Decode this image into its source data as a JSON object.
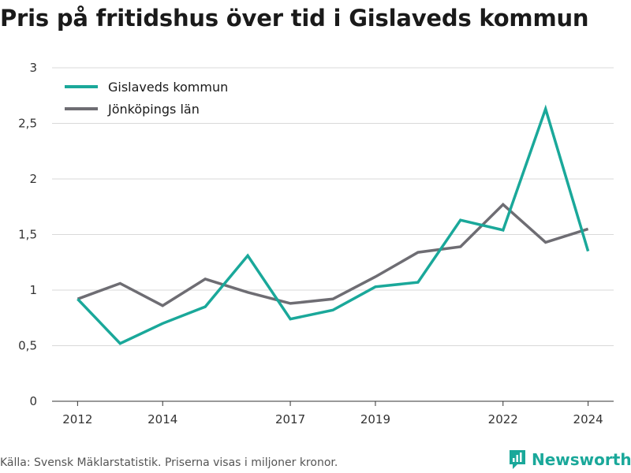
{
  "title": "Pris på fritidshus över tid i Gislaveds kommun",
  "source": "Källa: Svensk Mäklarstatistik. Priserna visas i miljoner kronor.",
  "brand": {
    "name": "Newsworthy",
    "icon": "newsworthy-logo-icon",
    "color": "#1aa89a"
  },
  "chart_data": {
    "type": "line",
    "title": "Pris på fritidshus över tid i Gislaveds kommun",
    "x": [
      2012,
      2013,
      2014,
      2015,
      2016,
      2017,
      2018,
      2019,
      2020,
      2021,
      2022,
      2023,
      2024
    ],
    "xticks": [
      "2012",
      "2014",
      "2017",
      "2019",
      "2022",
      "2024"
    ],
    "xtick_values": [
      2012,
      2014,
      2017,
      2019,
      2022,
      2024
    ],
    "yticks": [
      "0",
      "0,5",
      "1",
      "1,5",
      "2",
      "2,5",
      "3"
    ],
    "ytick_values": [
      0,
      0.5,
      1,
      1.5,
      2,
      2.5,
      3
    ],
    "xlim": [
      2011.4,
      2024.6
    ],
    "ylim": [
      0,
      3
    ],
    "grid": "horizontal",
    "legend_position": "top-left",
    "series": [
      {
        "name": "Gislaveds kommun",
        "color": "#1aa89a",
        "values": [
          0.92,
          0.52,
          0.7,
          0.85,
          1.31,
          0.74,
          0.82,
          1.03,
          1.07,
          1.63,
          1.54,
          2.63,
          1.35
        ]
      },
      {
        "name": "Jönköpings län",
        "color": "#6e6d73",
        "values": [
          0.92,
          1.06,
          0.86,
          1.1,
          0.98,
          0.88,
          0.92,
          1.12,
          1.34,
          1.39,
          1.77,
          1.43,
          1.55
        ]
      }
    ]
  }
}
